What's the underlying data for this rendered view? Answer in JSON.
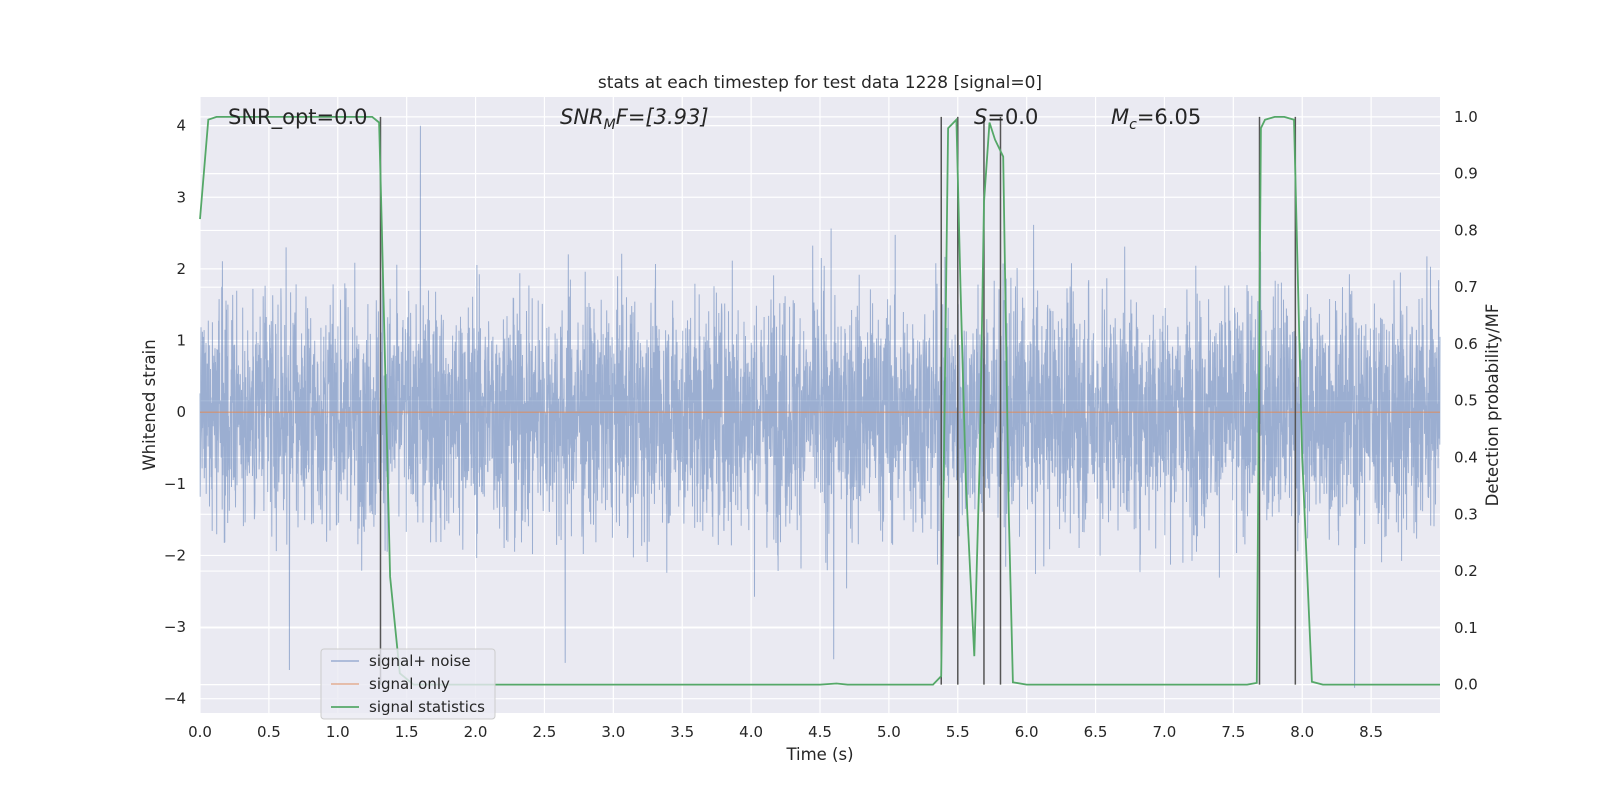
{
  "chart_data": {
    "type": "line",
    "title": "stats at each timestep for test data 1228 [signal=0]",
    "xlabel": "Time (s)",
    "ylabel": "Whitened strain",
    "y2label": "Detection probability/MF",
    "xlim": [
      0,
      9.0
    ],
    "ylim": [
      -4.2,
      4.4
    ],
    "y2lim": [
      -0.05,
      1.035
    ],
    "xticks": [
      0.0,
      0.5,
      1.0,
      1.5,
      2.0,
      2.5,
      3.0,
      3.5,
      4.0,
      4.5,
      5.0,
      5.5,
      6.0,
      6.5,
      7.0,
      7.5,
      8.0,
      8.5
    ],
    "yticks": [
      4,
      3,
      2,
      1,
      0,
      -1,
      -2,
      -3,
      -4
    ],
    "y2ticks": [
      1.0,
      0.9,
      0.8,
      0.7,
      0.6,
      0.5,
      0.4,
      0.3,
      0.2,
      0.1,
      0.0
    ],
    "grid": true,
    "legend_position": "lower-left",
    "colors": {
      "noise": "#4c72b0",
      "signal": "#dd8452",
      "stats": "#55a868",
      "marker": "#555555",
      "background": "#eaeaf2"
    },
    "annotations": {
      "snr_opt": "SNR_opt=0.0",
      "snr_mf_prefix": "SNR",
      "snr_mf_sub": "M",
      "snr_mf_suffix": "F=[3.93]",
      "s_italic": "S",
      "s_rest": "=0.0",
      "mc_italic": "M",
      "mc_sub": "c",
      "mc_rest": "=6.05"
    },
    "series": [
      {
        "name": "signal+ noise",
        "kind": "noise",
        "description_of_values": "whitened strain noise, amplitude mostly within ±2.7 with peaks near ±4",
        "envelope": [
          2.7,
          -2.7
        ],
        "peaks": [
          [
            1.6,
            4.0
          ],
          [
            0.65,
            -3.6
          ],
          [
            8.38,
            -3.85
          ],
          [
            4.6,
            -3.45
          ],
          [
            2.65,
            -3.5
          ]
        ]
      },
      {
        "name": "signal only",
        "kind": "line",
        "x": [
          0.0,
          9.0
        ],
        "y": [
          0.0,
          0.0
        ]
      },
      {
        "name": "signal statistics",
        "kind": "line",
        "axis": "right",
        "x": [
          0.0,
          0.06,
          0.12,
          0.3,
          0.5,
          1.0,
          1.25,
          1.3,
          1.32,
          1.38,
          1.45,
          1.55,
          2.0,
          3.0,
          4.0,
          4.5,
          4.62,
          4.7,
          5.0,
          5.32,
          5.38,
          5.43,
          5.49,
          5.52,
          5.56,
          5.62,
          5.66,
          5.69,
          5.73,
          5.77,
          5.83,
          5.87,
          5.9,
          6.0,
          7.0,
          7.6,
          7.67,
          7.7,
          7.73,
          7.8,
          7.87,
          7.94,
          8.0,
          8.07,
          8.15,
          8.5,
          9.0
        ],
        "y": [
          0.82,
          0.995,
          1.0,
          1.0,
          1.0,
          1.0,
          1.0,
          0.99,
          0.8,
          0.19,
          0.02,
          0.0,
          0.0,
          0.0,
          0.0,
          0.0,
          0.002,
          0.0,
          0.0,
          0.0,
          0.015,
          0.98,
          0.995,
          0.7,
          0.35,
          0.05,
          0.4,
          0.85,
          0.99,
          0.96,
          0.93,
          0.3,
          0.004,
          0.0,
          0.0,
          0.0,
          0.003,
          0.98,
          0.995,
          1.0,
          1.0,
          0.995,
          0.4,
          0.005,
          0.0,
          0.0,
          0.0
        ]
      }
    ],
    "vlines": [
      1.31,
      5.38,
      5.5,
      5.69,
      5.81,
      7.69,
      7.95
    ],
    "vlines_range": [
      0.0,
      1.0
    ]
  }
}
